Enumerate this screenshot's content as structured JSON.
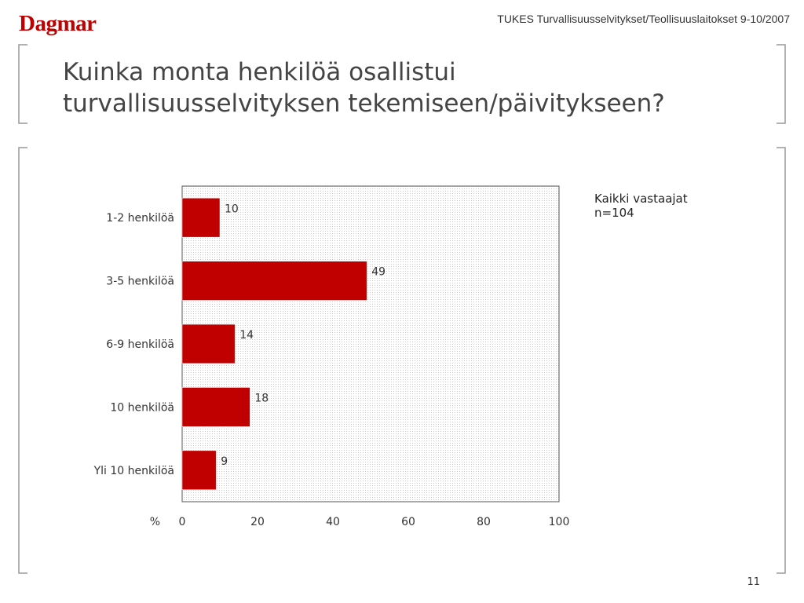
{
  "header": {
    "logo_text": "Dagmar",
    "subtitle": "TUKES Turvallisuusselvitykset/Teollisuuslaitokset 9-10/2007"
  },
  "page": {
    "title_line1": "Kuinka monta henkilöä osallistui",
    "title_line2": "turvallisuusselvityksen tekemiseen/päivitykseen?",
    "note_line1": "Kaikki vastaajat",
    "note_line2": "n=104",
    "page_number": "11"
  },
  "colors": {
    "bar": "#c00000",
    "brand": "#c00000"
  },
  "chart_data": {
    "type": "bar",
    "orientation": "horizontal",
    "categories": [
      "1-2 henkilöä",
      "3-5 henkilöä",
      "6-9 henkilöä",
      "10 henkilöä",
      "Yli 10 henkilöä"
    ],
    "values": [
      10,
      49,
      14,
      18,
      9
    ],
    "xlabel": "%",
    "xlim": [
      0,
      100
    ],
    "xticks": [
      0,
      20,
      40,
      60,
      80,
      100
    ],
    "grid": false
  }
}
